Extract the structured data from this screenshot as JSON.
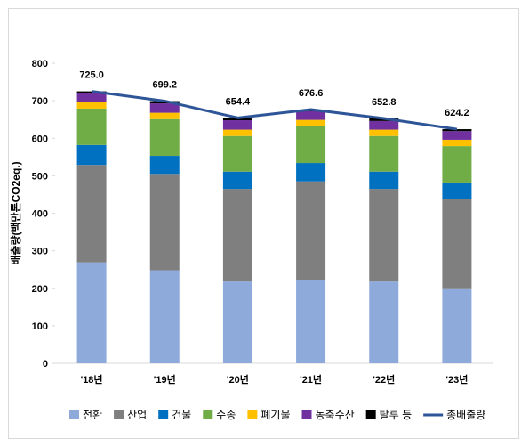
{
  "chart_data": {
    "type": "bar",
    "stacked": true,
    "title": "",
    "xlabel": "",
    "ylabel": "배출량(백만톤CO2eq.)",
    "ylim": [
      0,
      800
    ],
    "yticks": [
      0,
      100,
      200,
      300,
      400,
      500,
      600,
      700,
      800
    ],
    "grid": false,
    "legend_position": "bottom",
    "categories": [
      "'18년",
      "'19년",
      "'20년",
      "'21년",
      "'22년",
      "'23년"
    ],
    "series": [
      {
        "name": "전환",
        "color": "#8eaadb",
        "values": [
          269,
          248,
          218,
          222,
          218,
          200
        ]
      },
      {
        "name": "산업",
        "color": "#7f7f7f",
        "values": [
          260,
          257,
          247,
          263,
          247,
          239
        ]
      },
      {
        "name": "건물",
        "color": "#0070c0",
        "values": [
          53,
          48,
          46,
          49,
          46,
          43
        ]
      },
      {
        "name": "수송",
        "color": "#70ad47",
        "values": [
          97,
          98,
          95,
          98,
          95,
          97
        ]
      },
      {
        "name": "폐기물",
        "color": "#ffc000",
        "values": [
          17,
          17,
          17,
          17,
          17,
          17
        ]
      },
      {
        "name": "농축수산",
        "color": "#7030a0",
        "values": [
          24,
          25,
          25,
          23,
          23,
          23
        ]
      },
      {
        "name": "탈루 등",
        "color": "#000000",
        "values": [
          5,
          6,
          6.4,
          4.6,
          6.8,
          5.2
        ]
      }
    ],
    "line_series": {
      "name": "총배출량",
      "color": "#2e5597",
      "values": [
        725.0,
        699.2,
        654.4,
        676.6,
        652.8,
        624.2
      ],
      "labels": [
        "725.0",
        "699.2",
        "654.4",
        "676.6",
        "652.8",
        "624.2"
      ]
    }
  }
}
